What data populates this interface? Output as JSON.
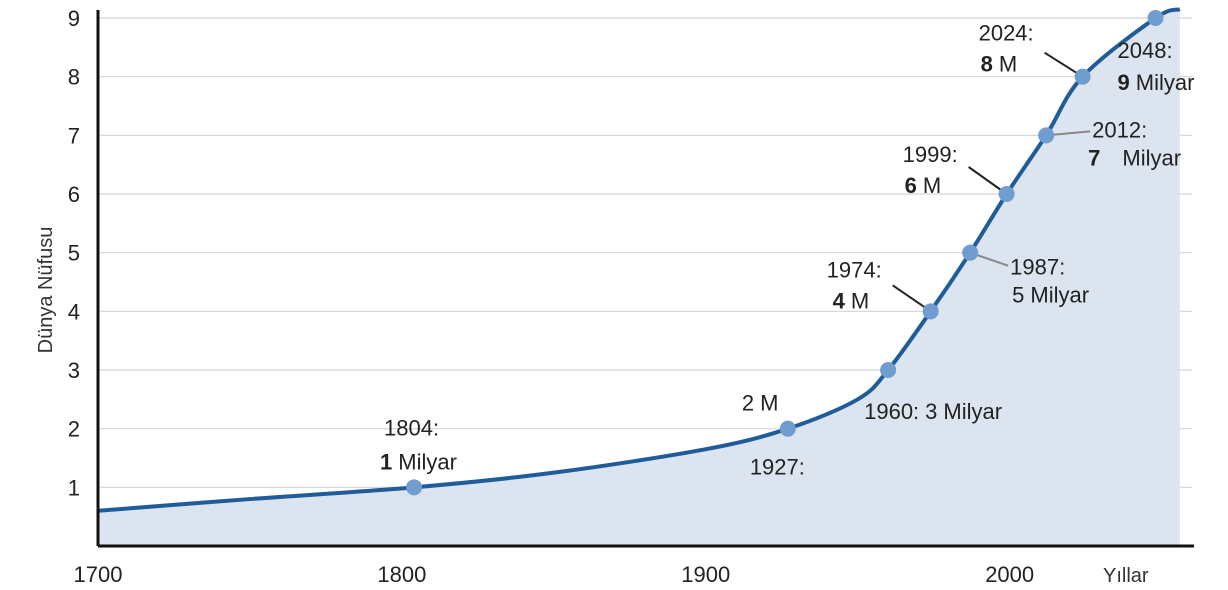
{
  "chart_data": {
    "type": "area",
    "xlabel": "Yıllar",
    "ylabel": "Dünya Nüfusu",
    "xlim": [
      1700,
      2060
    ],
    "ylim": [
      0,
      9
    ],
    "x_ticks": [
      "1700",
      "1800",
      "1900",
      "2000"
    ],
    "y_ticks": [
      "1",
      "2",
      "3",
      "4",
      "5",
      "6",
      "7",
      "8",
      "9"
    ],
    "grid": true,
    "colors": {
      "line": "#1f5c99",
      "fill": "#dbe4ef",
      "marker": "#6f9dd0",
      "grid": "#d4d4d4"
    },
    "series": [
      {
        "x": [
          1700,
          1750,
          1804,
          1850,
          1900,
          1927,
          1950,
          1960,
          1974,
          1987,
          1999,
          2012,
          2024,
          2048,
          2056
        ],
        "values": [
          0.6,
          0.8,
          1,
          1.25,
          1.65,
          2,
          2.5,
          3,
          4,
          5,
          6,
          7,
          8,
          9,
          9.15
        ]
      }
    ],
    "milestones": [
      {
        "year": 1804,
        "value": 1,
        "label_year": "1804:",
        "label_num": "1",
        "label_unit": "Milyar"
      },
      {
        "year": 1927,
        "value": 2,
        "label_year": "1927:",
        "label_num": "2",
        "label_unit": "M"
      },
      {
        "year": 1960,
        "value": 3,
        "label_year": "1960:",
        "label_num": "3",
        "label_unit": "Milyar"
      },
      {
        "year": 1974,
        "value": 4,
        "label_year": "1974:",
        "label_num": "4",
        "label_unit": "M"
      },
      {
        "year": 1987,
        "value": 5,
        "label_year": "1987:",
        "label_num": "5",
        "label_unit": "Milyar"
      },
      {
        "year": 1999,
        "value": 6,
        "label_year": "1999:",
        "label_num": "6",
        "label_unit": "M"
      },
      {
        "year": 2012,
        "value": 7,
        "label_year": "2012:",
        "label_num": "7",
        "label_unit": "Milyar"
      },
      {
        "year": 2024,
        "value": 8,
        "label_year": "2024:",
        "label_num": "8",
        "label_unit": "M"
      },
      {
        "year": 2048,
        "value": 9,
        "label_year": "2048:",
        "label_num": "9",
        "label_unit": "Milyar"
      }
    ]
  }
}
